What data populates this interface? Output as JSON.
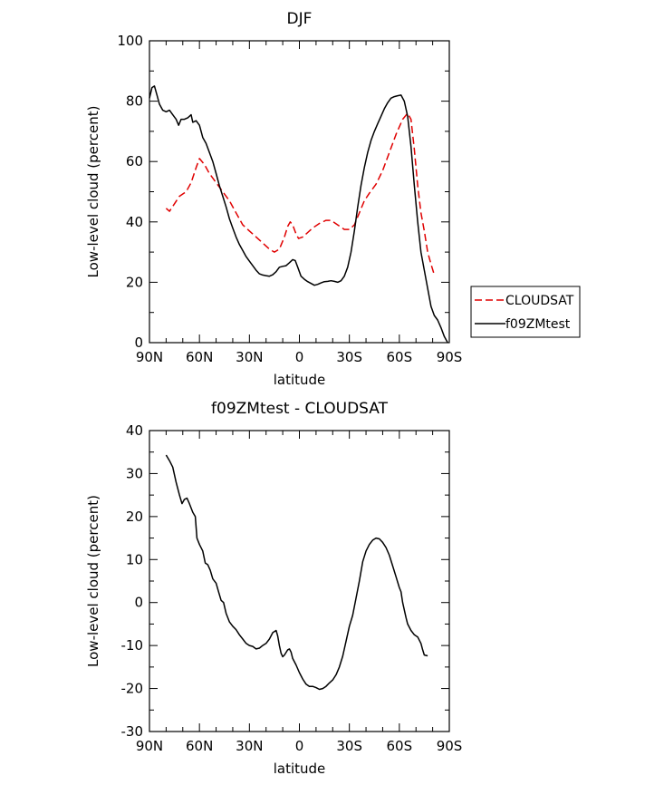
{
  "chart_data": [
    {
      "type": "line",
      "title": "DJF",
      "xlabel": "latitude",
      "ylabel": "Low-level cloud (percent)",
      "xlim": [
        90,
        -90
      ],
      "ylim": [
        0,
        100
      ],
      "yticks": [
        0,
        20,
        40,
        60,
        80,
        100
      ],
      "xticks": [
        {
          "value": 90,
          "label": "90N"
        },
        {
          "value": 60,
          "label": "60N"
        },
        {
          "value": 30,
          "label": "30N"
        },
        {
          "value": 0,
          "label": "0"
        },
        {
          "value": -30,
          "label": "30S"
        },
        {
          "value": -60,
          "label": "60S"
        },
        {
          "value": -90,
          "label": "90S"
        }
      ],
      "legend_position": "right",
      "series": [
        {
          "name": "CLOUDSAT",
          "color": "#e00000",
          "style": "dashed",
          "points": [
            [
              80,
              44.5
            ],
            [
              78,
              43.5
            ],
            [
              75,
              46
            ],
            [
              72,
              48.5
            ],
            [
              68,
              50
            ],
            [
              65,
              53
            ],
            [
              62,
              58
            ],
            [
              60,
              61
            ],
            [
              57,
              59
            ],
            [
              54,
              56
            ],
            [
              50,
              53
            ],
            [
              46,
              50
            ],
            [
              42,
              47
            ],
            [
              38,
              43
            ],
            [
              34,
              39
            ],
            [
              30,
              37
            ],
            [
              26,
              35
            ],
            [
              22,
              33
            ],
            [
              18,
              31
            ],
            [
              15,
              30
            ],
            [
              12,
              31
            ],
            [
              9,
              35
            ],
            [
              7,
              38.5
            ],
            [
              5.5,
              40
            ],
            [
              4,
              39
            ],
            [
              2,
              36
            ],
            [
              0.5,
              34.5
            ],
            [
              -2,
              35
            ],
            [
              -5,
              36.5
            ],
            [
              -8,
              38
            ],
            [
              -12,
              39.5
            ],
            [
              -16,
              40.5
            ],
            [
              -19,
              40.5
            ],
            [
              -23,
              39
            ],
            [
              -27,
              37.5
            ],
            [
              -30,
              37.5
            ],
            [
              -33,
              39
            ],
            [
              -36,
              43
            ],
            [
              -39,
              47
            ],
            [
              -42,
              49.5
            ],
            [
              -46,
              52.5
            ],
            [
              -50,
              57
            ],
            [
              -54,
              63
            ],
            [
              -58,
              69
            ],
            [
              -62,
              74
            ],
            [
              -65,
              76
            ],
            [
              -67,
              74
            ],
            [
              -69,
              64
            ],
            [
              -71,
              52
            ],
            [
              -73,
              43
            ],
            [
              -75,
              37
            ],
            [
              -77,
              30
            ],
            [
              -79,
              26
            ],
            [
              -81,
              22.5
            ]
          ]
        },
        {
          "name": "f09ZMtest",
          "color": "#000000",
          "style": "solid",
          "points": [
            [
              90,
              81
            ],
            [
              88.5,
              84.5
            ],
            [
              87,
              85
            ],
            [
              85.5,
              82
            ],
            [
              84,
              79
            ],
            [
              82,
              77
            ],
            [
              80,
              76.5
            ],
            [
              78,
              77
            ],
            [
              76,
              75.5
            ],
            [
              74,
              74
            ],
            [
              72.5,
              72
            ],
            [
              71,
              74
            ],
            [
              69,
              74
            ],
            [
              67,
              74.5
            ],
            [
              65,
              75.5
            ],
            [
              64,
              73
            ],
            [
              62,
              73.5
            ],
            [
              60,
              72
            ],
            [
              58,
              68
            ],
            [
              56,
              66
            ],
            [
              54,
              63
            ],
            [
              52,
              60
            ],
            [
              50,
              56
            ],
            [
              48,
              52
            ],
            [
              46,
              48.5
            ],
            [
              44,
              45
            ],
            [
              42,
              41
            ],
            [
              40,
              38
            ],
            [
              38,
              35
            ],
            [
              36,
              32.5
            ],
            [
              34,
              30.5
            ],
            [
              32,
              28.5
            ],
            [
              30,
              27
            ],
            [
              28,
              25.5
            ],
            [
              26,
              24
            ],
            [
              24,
              22.8
            ],
            [
              22,
              22.4
            ],
            [
              20,
              22.2
            ],
            [
              18,
              22
            ],
            [
              16,
              22.5
            ],
            [
              14,
              23.5
            ],
            [
              12,
              25
            ],
            [
              10,
              25.3
            ],
            [
              8,
              25.5
            ],
            [
              6,
              26.5
            ],
            [
              4,
              27.5
            ],
            [
              2.5,
              27.2
            ],
            [
              1,
              25
            ],
            [
              -1,
              22
            ],
            [
              -3,
              21
            ],
            [
              -5,
              20.2
            ],
            [
              -7,
              19.6
            ],
            [
              -9,
              19
            ],
            [
              -11,
              19.3
            ],
            [
              -13,
              19.8
            ],
            [
              -15,
              20.2
            ],
            [
              -17,
              20.3
            ],
            [
              -19,
              20.5
            ],
            [
              -21,
              20.3
            ],
            [
              -23,
              20
            ],
            [
              -25,
              20.5
            ],
            [
              -27,
              22
            ],
            [
              -29,
              25
            ],
            [
              -31,
              30
            ],
            [
              -33,
              37
            ],
            [
              -35,
              45
            ],
            [
              -37,
              52
            ],
            [
              -39,
              58
            ],
            [
              -41,
              63
            ],
            [
              -43,
              67
            ],
            [
              -45,
              70
            ],
            [
              -47,
              72.5
            ],
            [
              -49,
              75
            ],
            [
              -51,
              77.5
            ],
            [
              -53,
              79.5
            ],
            [
              -55,
              81
            ],
            [
              -57,
              81.5
            ],
            [
              -59,
              81.8
            ],
            [
              -61,
              82
            ],
            [
              -63,
              80
            ],
            [
              -65,
              75
            ],
            [
              -67,
              65
            ],
            [
              -69,
              52
            ],
            [
              -71,
              40
            ],
            [
              -73,
              30
            ],
            [
              -75,
              24
            ],
            [
              -77,
              18
            ],
            [
              -79,
              12
            ],
            [
              -81,
              9
            ],
            [
              -83,
              7.5
            ],
            [
              -85,
              5
            ],
            [
              -87,
              2
            ],
            [
              -89,
              0
            ]
          ]
        }
      ]
    },
    {
      "type": "line",
      "title": "f09ZMtest - CLOUDSAT",
      "xlabel": "latitude",
      "ylabel": "Low-level cloud (percent)",
      "xlim": [
        90,
        -90
      ],
      "ylim": [
        -30,
        40
      ],
      "yticks": [
        -30,
        -20,
        -10,
        0,
        10,
        20,
        30,
        40
      ],
      "xticks": [
        {
          "value": 90,
          "label": "90N"
        },
        {
          "value": 60,
          "label": "60N"
        },
        {
          "value": 30,
          "label": "30N"
        },
        {
          "value": 0,
          "label": "0"
        },
        {
          "value": -30,
          "label": "30S"
        },
        {
          "value": -60,
          "label": "60S"
        },
        {
          "value": -90,
          "label": "90S"
        }
      ],
      "series": [
        {
          "color": "#000000",
          "style": "solid",
          "points": [
            [
              80,
              34.3
            ],
            [
              78,
              33
            ],
            [
              76,
              31.5
            ],
            [
              74,
              28
            ],
            [
              72,
              25
            ],
            [
              70.5,
              23
            ],
            [
              69,
              24
            ],
            [
              67.5,
              24.3
            ],
            [
              66,
              23
            ],
            [
              64,
              21
            ],
            [
              62.5,
              20
            ],
            [
              61.5,
              15
            ],
            [
              60,
              13.5
            ],
            [
              58,
              12
            ],
            [
              56.5,
              9.2
            ],
            [
              55,
              8.8
            ],
            [
              53.5,
              7.5
            ],
            [
              52,
              5.5
            ],
            [
              50,
              4.5
            ],
            [
              48.5,
              2.5
            ],
            [
              47,
              0.5
            ],
            [
              45.5,
              0
            ],
            [
              44,
              -2.5
            ],
            [
              42,
              -4.5
            ],
            [
              40,
              -5.5
            ],
            [
              38,
              -6.3
            ],
            [
              36,
              -7.5
            ],
            [
              34,
              -8.5
            ],
            [
              32,
              -9.5
            ],
            [
              30,
              -10
            ],
            [
              28,
              -10.2
            ],
            [
              26,
              -10.8
            ],
            [
              24,
              -10.6
            ],
            [
              22,
              -10
            ],
            [
              20,
              -9.5
            ],
            [
              18,
              -8.5
            ],
            [
              16,
              -7
            ],
            [
              14,
              -6.5
            ],
            [
              13,
              -7.8
            ],
            [
              12,
              -10
            ],
            [
              11,
              -11.8
            ],
            [
              10,
              -12.6
            ],
            [
              9,
              -12.2
            ],
            [
              7,
              -11
            ],
            [
              6,
              -10.8
            ],
            [
              5,
              -11.5
            ],
            [
              4,
              -13
            ],
            [
              2,
              -14.5
            ],
            [
              0,
              -16.3
            ],
            [
              -2,
              -17.8
            ],
            [
              -4,
              -19
            ],
            [
              -6,
              -19.5
            ],
            [
              -8,
              -19.5
            ],
            [
              -10,
              -19.8
            ],
            [
              -12,
              -20.2
            ],
            [
              -14,
              -20
            ],
            [
              -16,
              -19.5
            ],
            [
              -18,
              -18.7
            ],
            [
              -20,
              -18
            ],
            [
              -22,
              -16.8
            ],
            [
              -24,
              -15
            ],
            [
              -26,
              -12.5
            ],
            [
              -28,
              -9
            ],
            [
              -30,
              -5.5
            ],
            [
              -32,
              -3
            ],
            [
              -34,
              1
            ],
            [
              -36,
              5
            ],
            [
              -38,
              9.5
            ],
            [
              -40,
              12
            ],
            [
              -42,
              13.5
            ],
            [
              -44,
              14.5
            ],
            [
              -46,
              15
            ],
            [
              -48,
              14.8
            ],
            [
              -50,
              14
            ],
            [
              -52,
              12.8
            ],
            [
              -54,
              11
            ],
            [
              -56,
              8.5
            ],
            [
              -58,
              6
            ],
            [
              -60,
              3.5
            ],
            [
              -61,
              2.5
            ],
            [
              -62,
              0
            ],
            [
              -64,
              -3.5
            ],
            [
              -65,
              -5
            ],
            [
              -67,
              -6.5
            ],
            [
              -69,
              -7.5
            ],
            [
              -71,
              -8
            ],
            [
              -73,
              -9.5
            ],
            [
              -74,
              -11
            ],
            [
              -75,
              -12.2
            ],
            [
              -77,
              -12.4
            ]
          ]
        }
      ]
    }
  ]
}
